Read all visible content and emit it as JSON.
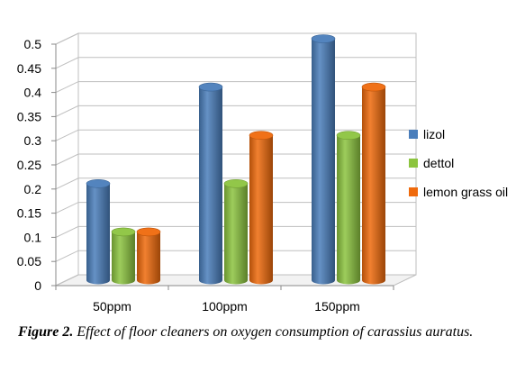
{
  "chart_data": {
    "type": "bar",
    "categories": [
      "50ppm",
      "100ppm",
      "150ppm"
    ],
    "series": [
      {
        "name": "lizol",
        "values": [
          0.2,
          0.4,
          0.5
        ],
        "color": "#4a7ebb"
      },
      {
        "name": "dettol",
        "values": [
          0.1,
          0.2,
          0.3
        ],
        "color": "#8cc43f"
      },
      {
        "name": "lemon grass oil",
        "values": [
          0.1,
          0.3,
          0.4
        ],
        "color": "#ef6a0c"
      }
    ],
    "yticks": [
      "0",
      "0.05",
      "0.1",
      "0.15",
      "0.2",
      "0.25",
      "0.3",
      "0.35",
      "0.4",
      "0.45",
      "0.5"
    ],
    "ylim": [
      0,
      0.5
    ],
    "grid": true,
    "legend_position": "right",
    "style": "3d-cylinder"
  },
  "caption": {
    "label": "Figure 2.",
    "text": "Effect of floor cleaners on oxygen consumption of carassius auratus."
  }
}
